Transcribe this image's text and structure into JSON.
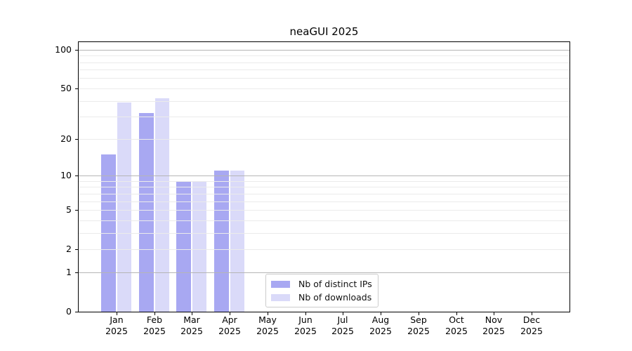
{
  "chart_data": {
    "type": "bar",
    "title": "neaGUI 2025",
    "categories": [
      "Jan",
      "Feb",
      "Mar",
      "Apr",
      "May",
      "Jun",
      "Jul",
      "Aug",
      "Sep",
      "Oct",
      "Nov",
      "Dec"
    ],
    "x_sublabel_year": "2025",
    "series": [
      {
        "name": "Nb of distinct IPs",
        "color": "#a8a8f2",
        "values": [
          15,
          32,
          9,
          11,
          0,
          0,
          0,
          0,
          0,
          0,
          0,
          0
        ]
      },
      {
        "name": "Nb of downloads",
        "color": "#dadaf9",
        "values": [
          39,
          42,
          9,
          11,
          0,
          0,
          0,
          0,
          0,
          0,
          0,
          0
        ]
      }
    ],
    "y_ticks": [
      0,
      1,
      2,
      5,
      10,
      20,
      50,
      100
    ],
    "y_scale": "log1p",
    "ylim": [
      0,
      114.3
    ],
    "xlabel": "",
    "ylabel": "",
    "grid": true,
    "major_grid_values": [
      1,
      10,
      100
    ],
    "legend_position": "lower-center-inside",
    "colors": {
      "major_grid": "#b5b5b5",
      "minor_grid": "#ebebeb",
      "axis": "#000000",
      "background": "#ffffff"
    }
  }
}
